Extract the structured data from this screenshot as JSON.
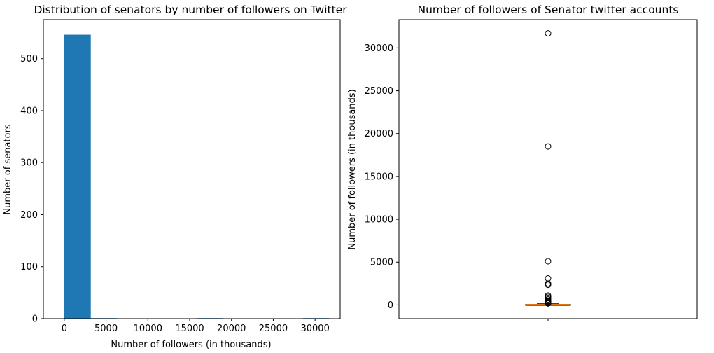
{
  "chart_data": [
    {
      "type": "bar",
      "title": "Distribution of senators by number of followers on Twitter",
      "xlabel": "Number of followers (in thousands)",
      "ylabel": "Number of senators",
      "xlim": [
        -2500,
        33000
      ],
      "ylim": [
        0,
        575
      ],
      "x_ticks": [
        0,
        5000,
        10000,
        15000,
        20000,
        25000,
        30000
      ],
      "y_ticks": [
        0,
        100,
        200,
        300,
        400,
        500
      ],
      "bar_color": "#1f77b4",
      "bins": [
        {
          "start": 0,
          "end": 3170,
          "count": 546
        },
        {
          "start": 3170,
          "end": 6340,
          "count": 1
        },
        {
          "start": 6340,
          "end": 9510,
          "count": 0
        },
        {
          "start": 9510,
          "end": 12680,
          "count": 0
        },
        {
          "start": 12680,
          "end": 15850,
          "count": 0
        },
        {
          "start": 15850,
          "end": 19020,
          "count": 1
        },
        {
          "start": 19020,
          "end": 22190,
          "count": 0
        },
        {
          "start": 22190,
          "end": 25360,
          "count": 0
        },
        {
          "start": 25360,
          "end": 28530,
          "count": 0
        },
        {
          "start": 28530,
          "end": 31700,
          "count": 1
        }
      ],
      "grid": false
    },
    {
      "type": "box",
      "title": "Number of followers of Senator twitter accounts",
      "xlabel": "",
      "ylabel": "Number of followers (in thousands)",
      "ylim": [
        -1600,
        33300
      ],
      "y_ticks": [
        0,
        5000,
        10000,
        15000,
        20000,
        25000,
        30000
      ],
      "x_ticks": [
        "1"
      ],
      "median_color": "#ff7f0e",
      "box": {
        "q1": 20,
        "median": 40,
        "q3": 70,
        "whisker_low": 0,
        "whisker_high": 140
      },
      "outliers": [
        31700,
        18500,
        5100,
        3100,
        2500,
        2350,
        1100,
        950,
        800,
        650,
        500,
        400,
        320,
        250,
        200,
        170
      ],
      "grid": false
    }
  ]
}
